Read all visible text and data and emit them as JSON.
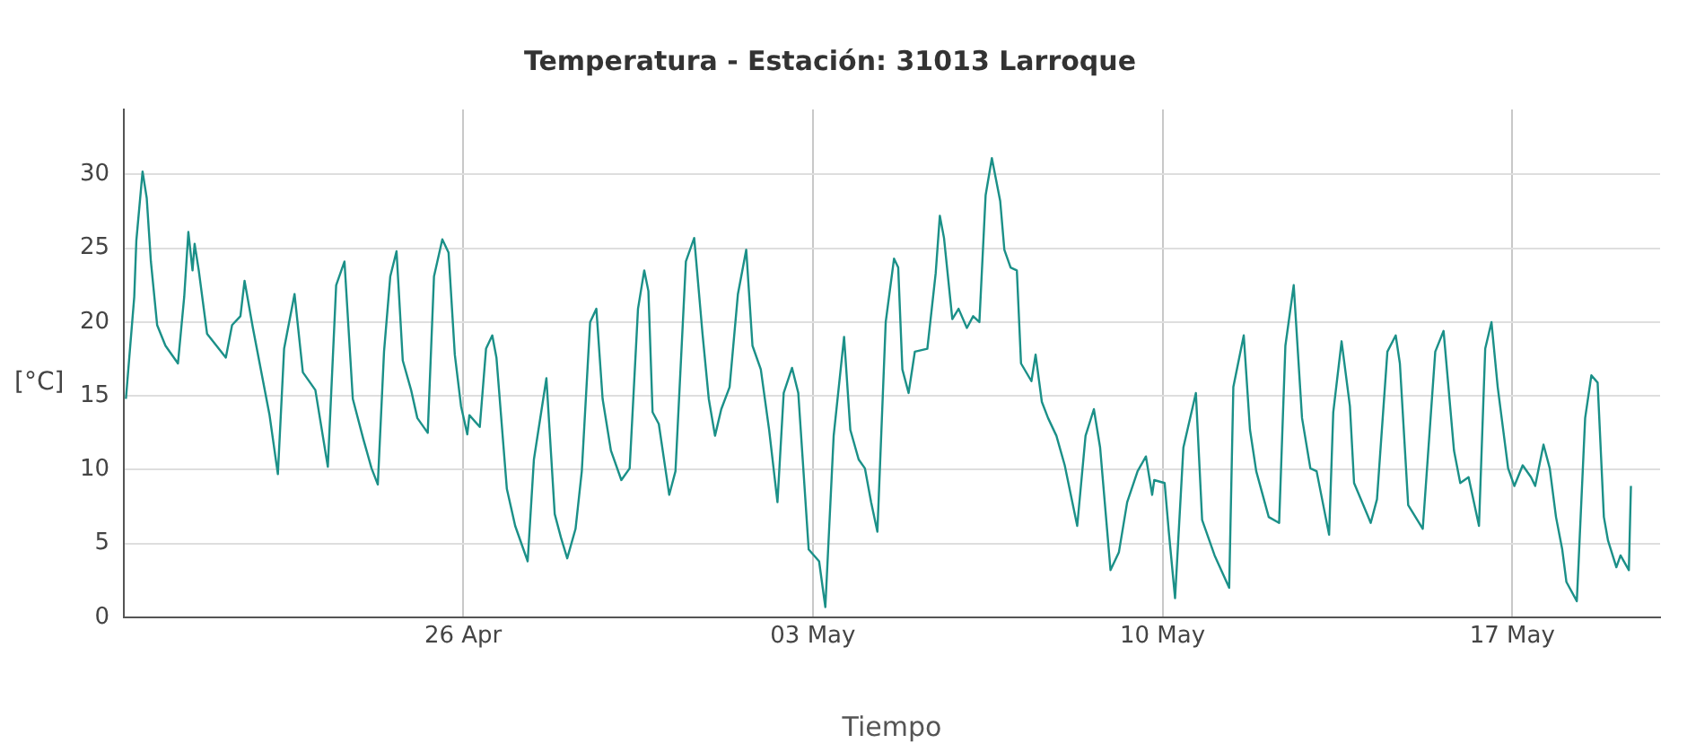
{
  "chart_data": {
    "type": "line",
    "title": "Temperatura - Estación: 31013 Larroque",
    "xlabel": "Tiempo",
    "ylabel": "[°C]",
    "x": [
      "--04-19T06:00",
      "--04-19T10:00",
      "--04-19T11:00",
      "--04-19T14:00",
      "--04-19T16:00",
      "--04-19T18:00",
      "--04-19T21:00",
      "--04-20T01:00",
      "--04-20T07:00",
      "--04-20T10:00",
      "--04-20T12:00",
      "--04-20T14:00",
      "--04-20T15:00",
      "--04-20T17:00",
      "--04-20T21:00",
      "--04-21T06:00",
      "--04-21T09:00",
      "--04-21T13:00",
      "--04-21T15:00",
      "--04-21T19:00",
      "--04-22T03:00",
      "--04-22T07:00",
      "--04-22T10:00",
      "--04-22T15:00",
      "--04-22T19:00",
      "--04-23T01:00",
      "--04-23T07:00",
      "--04-23T11:00",
      "--04-23T15:00",
      "--04-23T19:00",
      "--04-24T00:00",
      "--04-24T04:00",
      "--04-24T07:00",
      "--04-24T10:00",
      "--04-24T13:00",
      "--04-24T16:00",
      "--04-24T19:00",
      "--04-24T23:00",
      "--04-25T02:00",
      "--04-25T07:00",
      "--04-25T10:00",
      "--04-25T14:00",
      "--04-25T17:00",
      "--04-25T20:00",
      "--04-25T23:00",
      "--04-26T02:00",
      "--04-26T03:00",
      "--04-26T08:00",
      "--04-26T11:00",
      "--04-26T14:00",
      "--04-26T16:00",
      "--04-26T21:00",
      "--04-27T01:00",
      "--04-27T07:00",
      "--04-27T10:00",
      "--04-27T16:00",
      "--04-27T20:00",
      "--04-27T23:00",
      "--04-28T02:00",
      "--04-28T06:00",
      "--04-28T09:00",
      "--04-28T13:00",
      "--04-28T16:00",
      "--04-28T19:00",
      "--04-28T23:00",
      "--04-29T04:00",
      "--04-29T08:00",
      "--04-29T12:00",
      "--04-29T15:00",
      "--04-29T17:00",
      "--04-29T19:00",
      "--04-29T22:00",
      "--04-30T03:00",
      "--04-30T06:00",
      "--04-30T11:00",
      "--04-30T15:00",
      "--04-30T19:00",
      "--04-30T22:00",
      "--05-01T01:00",
      "--05-01T04:00",
      "--05-01T08:00",
      "--05-01T12:00",
      "--05-01T16:00",
      "--05-01T19:00",
      "--05-01T23:00",
      "--05-02T03:00",
      "--05-02T07:00",
      "--05-02T10:00",
      "--05-02T14:00",
      "--05-02T17:00",
      "--05-02T22:00",
      "--05-03T03:00",
      "--05-03T06:00",
      "--05-03T10:00",
      "--05-03T15:00",
      "--05-03T18:00",
      "--05-03T22:00",
      "--05-04T01:00",
      "--05-04T04:00",
      "--05-04T07:00",
      "--05-04T11:00",
      "--05-04T15:00",
      "--05-04T17:00",
      "--05-04T19:00",
      "--05-04T22:00",
      "--05-05T01:00",
      "--05-05T07:00",
      "--05-05T11:00",
      "--05-05T13:00",
      "--05-05T15:00",
      "--05-05T19:00",
      "--05-05T22:00",
      "--05-06T02:00",
      "--05-06T05:00",
      "--05-06T08:00",
      "--05-06T11:00",
      "--05-06T14:00",
      "--05-06T18:00",
      "--05-06T20:00",
      "--05-06T23:00",
      "--05-07T02:00",
      "--05-07T04:00",
      "--05-07T09:00",
      "--05-07T11:00",
      "--05-07T14:00",
      "--05-07T17:00",
      "--05-07T21:00",
      "--05-08T01:00",
      "--05-08T07:00",
      "--05-08T11:00",
      "--05-08T15:00",
      "--05-08T18:00",
      "--05-08T23:00",
      "--05-09T03:00",
      "--05-09T07:00",
      "--05-09T12:00",
      "--05-09T16:00",
      "--05-09T19:00",
      "--05-09T20:00",
      "--05-10T01:00",
      "--05-10T03:00",
      "--05-10T06:00",
      "--05-10T10:00",
      "--05-10T16:00",
      "--05-10T19:00",
      "--05-11T01:00",
      "--05-11T08:00",
      "--05-11T10:00",
      "--05-11T15:00",
      "--05-11T18:00",
      "--05-11T21:00",
      "--05-12T03:00",
      "--05-12T08:00",
      "--05-12T11:00",
      "--05-12T15:00",
      "--05-12T19:00",
      "--05-12T23:00",
      "--05-13T02:00",
      "--05-13T08:00",
      "--05-13T10:00",
      "--05-13T14:00",
      "--05-13T18:00",
      "--05-13T20:00",
      "--05-14T04:00",
      "--05-14T07:00",
      "--05-14T12:00",
      "--05-14T16:00",
      "--05-14T18:00",
      "--05-14T22:00",
      "--05-15T05:00",
      "--05-15T11:00",
      "--05-15T15:00",
      "--05-15T20:00",
      "--05-15T23:00",
      "--05-16T03:00",
      "--05-16T08:00",
      "--05-16T11:00",
      "--05-16T14:00",
      "--05-16T17:00",
      "--05-16T22:00",
      "--05-17T01:00",
      "--05-17T05:00",
      "--05-17T09:00",
      "--05-17T11:00",
      "--05-17T15:00",
      "--05-17T18:00",
      "--05-17T21:00",
      "--05-18T00:00",
      "--05-18T02:00",
      "--05-18T07:00",
      "--05-18T11:00",
      "--05-18T14:00",
      "--05-18T17:00",
      "--05-18T20:00",
      "--05-18T22:00",
      "--05-19T02:00",
      "--05-19T04:00",
      "--05-19T08:00",
      "--05-19T09:00"
    ],
    "series": [
      {
        "color": "#1b9088",
        "values": [
          14.8,
          21.7,
          25.5,
          30.2,
          28.4,
          24.1,
          19.8,
          18.4,
          17.2,
          21.7,
          26.1,
          23.5,
          25.3,
          23.5,
          19.2,
          17.6,
          19.8,
          20.4,
          22.8,
          19.6,
          13.7,
          9.7,
          18.2,
          21.9,
          16.6,
          15.4,
          10.2,
          22.5,
          24.1,
          14.8,
          12.1,
          10.1,
          9.0,
          18.0,
          23.1,
          24.8,
          17.4,
          15.4,
          13.5,
          12.5,
          23.1,
          25.6,
          24.7,
          17.8,
          14.3,
          12.4,
          13.7,
          12.9,
          18.2,
          19.1,
          17.6,
          8.7,
          6.2,
          3.8,
          10.7,
          16.2,
          7.0,
          5.4,
          4.0,
          6.0,
          9.9,
          20.0,
          20.9,
          14.8,
          11.3,
          9.3,
          10.1,
          20.9,
          23.5,
          22.1,
          13.9,
          13.1,
          8.3,
          9.9,
          24.1,
          25.7,
          19.2,
          14.8,
          12.3,
          14.1,
          15.6,
          21.9,
          24.9,
          18.4,
          16.8,
          12.7,
          7.8,
          15.2,
          16.9,
          15.2,
          4.6,
          3.8,
          0.7,
          12.3,
          19.0,
          12.7,
          10.7,
          10.1,
          7.8,
          5.8,
          20.0,
          24.3,
          23.7,
          16.8,
          15.2,
          18.0,
          18.2,
          23.3,
          27.2,
          25.7,
          20.2,
          20.9,
          19.6,
          20.4,
          20.0,
          28.6,
          31.1,
          28.2,
          24.9,
          23.7,
          23.5,
          17.2,
          16.0,
          17.8,
          14.6,
          13.5,
          12.3,
          10.3,
          6.2,
          12.3,
          14.1,
          11.5,
          3.2,
          4.4,
          7.8,
          9.9,
          10.9,
          8.3,
          9.3,
          9.1,
          5.8,
          1.3,
          11.5,
          15.2,
          6.6,
          4.2,
          2.0,
          15.6,
          19.1,
          12.7,
          9.9,
          6.8,
          6.4,
          18.4,
          22.5,
          13.5,
          10.1,
          9.9,
          5.6,
          13.9,
          18.7,
          14.3,
          9.1,
          6.4,
          8.0,
          18.0,
          19.1,
          17.2,
          7.6,
          6.0,
          18.0,
          19.4,
          11.3,
          9.1,
          9.5,
          6.2,
          18.2,
          20.0,
          15.6,
          10.1,
          8.9,
          10.3,
          9.5,
          8.9,
          11.7,
          10.1,
          6.8,
          4.6,
          2.4,
          1.1,
          13.5,
          16.4,
          15.9,
          6.8,
          5.2,
          3.4,
          4.2,
          3.2,
          8.9
        ]
      }
    ],
    "xlim": [
      "--04-19T05:00",
      "--05-19T23:00"
    ],
    "xticks": [
      {
        "value": "--04-26",
        "label": "26 Apr"
      },
      {
        "value": "--05-03",
        "label": "03 May"
      },
      {
        "value": "--05-10",
        "label": "10 May"
      },
      {
        "value": "--05-17",
        "label": "17 May"
      }
    ],
    "ylim": [
      0,
      34.4
    ],
    "yticks": [
      0,
      5,
      10,
      15,
      20,
      25,
      30
    ],
    "grid": true,
    "legend": false,
    "marker": "none",
    "line_style": "solid"
  }
}
